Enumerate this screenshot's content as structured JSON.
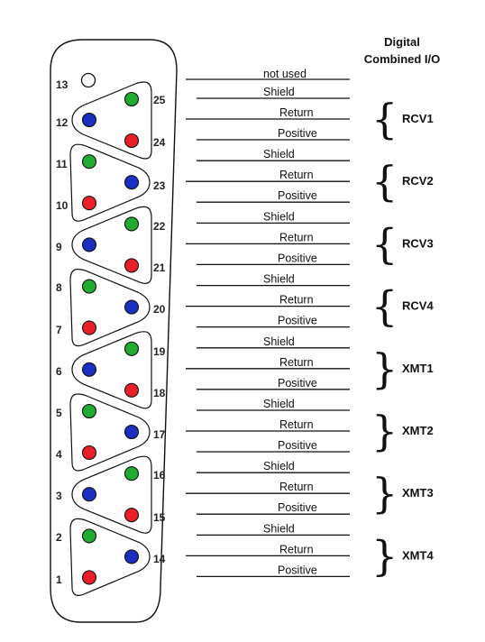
{
  "header": {
    "line1": "Digital",
    "line2": "Combined I/O"
  },
  "colors": {
    "green": "#22aa33",
    "blue": "#1a2fc0",
    "red": "#e8202a",
    "outline": "#111111"
  },
  "pins": {
    "left": [
      "13",
      "12",
      "11",
      "10",
      "9",
      "8",
      "7",
      "6",
      "5",
      "4",
      "3",
      "2",
      "1"
    ],
    "right": [
      "25",
      "24",
      "23",
      "22",
      "21",
      "20",
      "19",
      "18",
      "17",
      "16",
      "15",
      "14"
    ]
  },
  "wires": {
    "not_used": "not used",
    "labels": [
      "Shield",
      "Return",
      "Positive",
      "Shield",
      "Return",
      "Positive",
      "Shield",
      "Return",
      "Positive",
      "Shield",
      "Return",
      "Positive",
      "Shield",
      "Return",
      "Positive",
      "Shield",
      "Return",
      "Positive",
      "Shield",
      "Return",
      "Positive",
      "Shield",
      "Return",
      "Positive"
    ]
  },
  "groups": [
    "RCV1",
    "RCV2",
    "RCV3",
    "RCV4",
    "XMT1",
    "XMT2",
    "XMT3",
    "XMT4"
  ]
}
